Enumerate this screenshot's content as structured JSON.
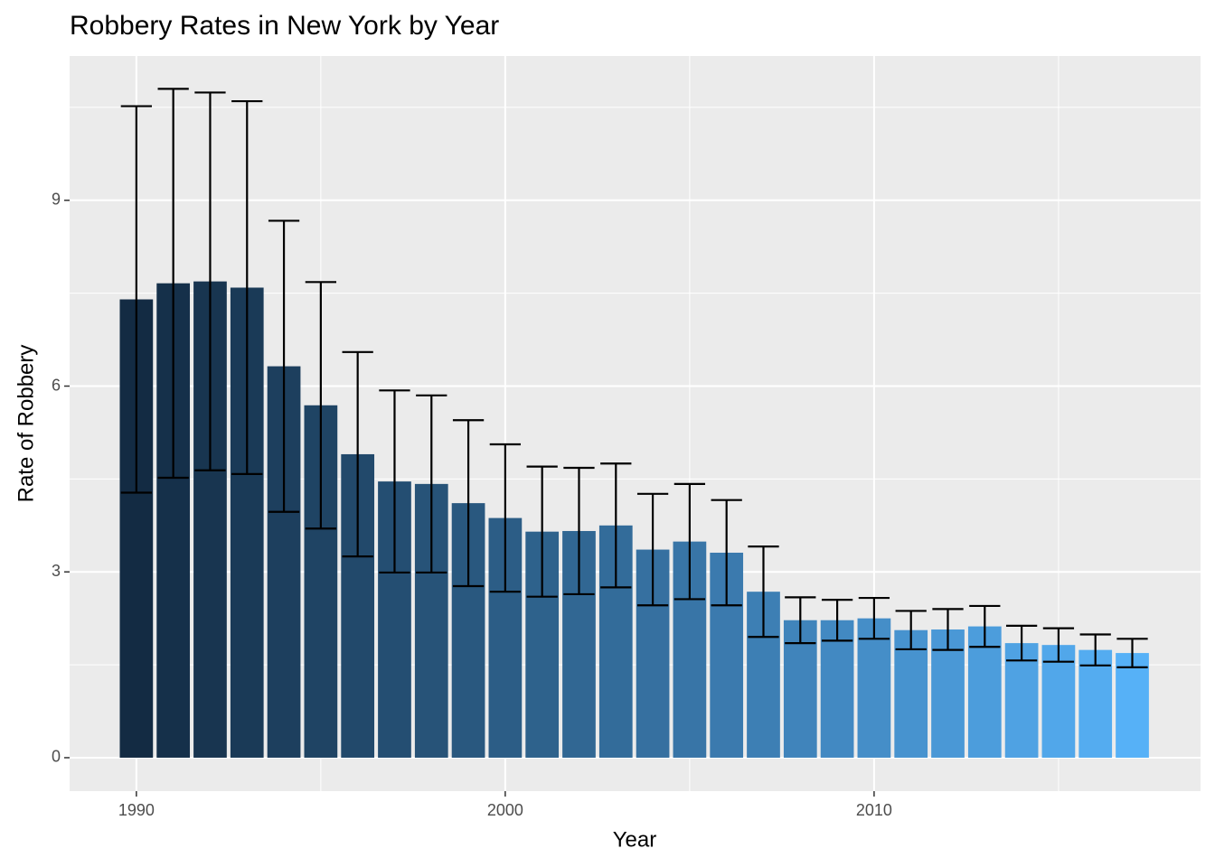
{
  "chart_data": {
    "type": "bar",
    "title": "Robbery Rates in New York by Year",
    "x_label": "Year",
    "y_label": "Rate of Robbery",
    "x": [
      1990,
      1991,
      1992,
      1993,
      1994,
      1995,
      1996,
      1997,
      1998,
      1999,
      2000,
      2001,
      2002,
      2003,
      2004,
      2005,
      2006,
      2007,
      2008,
      2009,
      2010,
      2011,
      2012,
      2013,
      2014,
      2015,
      2016,
      2017
    ],
    "values": [
      7.4,
      7.66,
      7.69,
      7.59,
      6.32,
      5.69,
      4.9,
      4.46,
      4.42,
      4.11,
      3.87,
      3.65,
      3.66,
      3.75,
      3.36,
      3.49,
      3.31,
      2.68,
      2.22,
      2.22,
      2.25,
      2.06,
      2.07,
      2.12,
      1.85,
      1.82,
      1.74,
      1.69
    ],
    "errors": [
      3.12,
      3.14,
      3.05,
      3.01,
      2.35,
      1.99,
      1.65,
      1.47,
      1.43,
      1.34,
      1.19,
      1.05,
      1.02,
      1.0,
      0.9,
      0.93,
      0.85,
      0.73,
      0.37,
      0.33,
      0.33,
      0.31,
      0.33,
      0.33,
      0.28,
      0.27,
      0.25,
      0.23
    ],
    "color_low": "#132B43",
    "color_high": "#56B1F7",
    "xlim": [
      1988.19,
      2018.85
    ],
    "ylim": [
      -0.54,
      11.33
    ],
    "xticks": [
      1990,
      2000,
      2010
    ],
    "yticks": [
      0,
      3,
      6,
      9
    ],
    "minor_xticks": [
      1995,
      2005,
      2015
    ],
    "minor_yticks": [
      1.5,
      4.5,
      7.5,
      10.5
    ],
    "grid": true
  }
}
